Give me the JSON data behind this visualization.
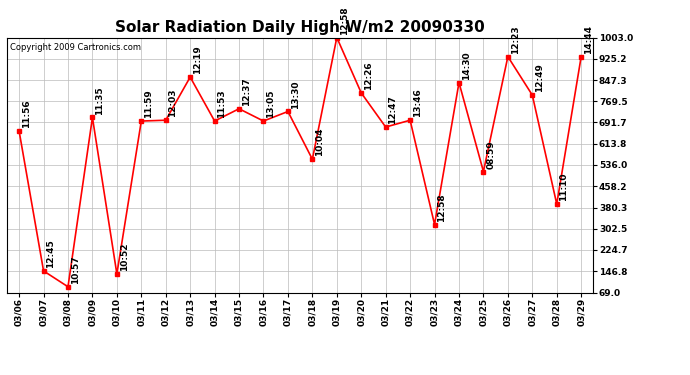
{
  "title": "Solar Radiation Daily High W/m2 20090330",
  "copyright": "Copyright 2009 Cartronics.com",
  "dates": [
    "03/06",
    "03/07",
    "03/08",
    "03/09",
    "03/10",
    "03/11",
    "03/12",
    "03/13",
    "03/14",
    "03/15",
    "03/16",
    "03/17",
    "03/18",
    "03/19",
    "03/20",
    "03/21",
    "03/22",
    "03/23",
    "03/24",
    "03/25",
    "03/26",
    "03/27",
    "03/28",
    "03/29"
  ],
  "values": [
    660,
    148,
    90,
    710,
    137,
    697,
    700,
    858,
    697,
    742,
    697,
    732,
    557,
    1003,
    800,
    675,
    700,
    318,
    838,
    512,
    933,
    792,
    393,
    933
  ],
  "times": [
    "11:56",
    "12:45",
    "10:57",
    "11:35",
    "10:52",
    "11:59",
    "12:03",
    "12:19",
    "11:53",
    "12:37",
    "13:05",
    "13:30",
    "10:04",
    "12:58",
    "12:26",
    "12:47",
    "13:46",
    "12:58",
    "14:30",
    "08:59",
    "12:23",
    "12:49",
    "11:10",
    "14:44"
  ],
  "line_color": "#ff0000",
  "marker_color": "#ff0000",
  "bg_color": "#ffffff",
  "grid_color": "#bbbbbb",
  "title_fontsize": 11,
  "annotation_fontsize": 6.5,
  "copyright_fontsize": 6,
  "ymin": 69.0,
  "ymax": 1003.0,
  "yticks": [
    69.0,
    146.8,
    224.7,
    302.5,
    380.3,
    458.2,
    536.0,
    613.8,
    691.7,
    769.5,
    847.3,
    925.2,
    1003.0
  ],
  "xtick_fontsize": 6.5,
  "ytick_fontsize": 6.5
}
